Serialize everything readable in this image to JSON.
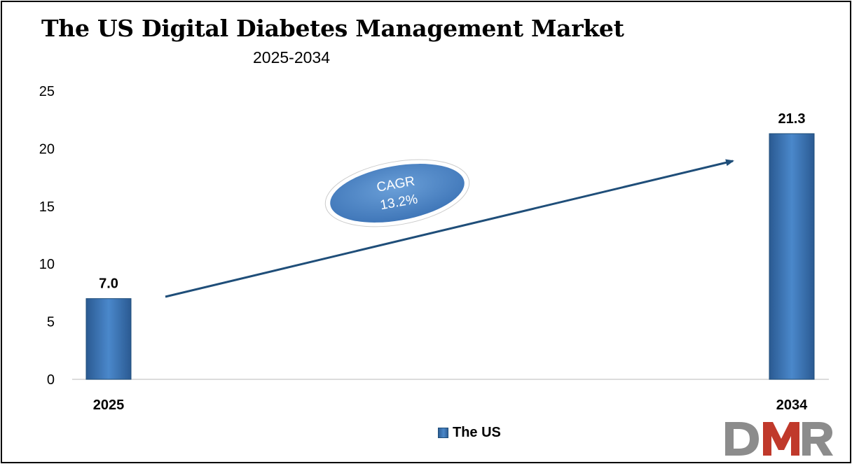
{
  "chart_data": {
    "type": "bar",
    "title": "The US Digital Diabetes Management Market",
    "subtitle": "2025-2034",
    "categories": [
      "2025",
      "2034"
    ],
    "series": [
      {
        "name": "The US",
        "values": [
          7.0,
          21.3
        ],
        "labels": [
          "7.0",
          "21.3"
        ]
      }
    ],
    "ylim": [
      0,
      25
    ],
    "yticks": [
      0,
      5,
      10,
      15,
      20,
      25
    ],
    "grid": false,
    "legend_position": "bottom",
    "annotation": {
      "line1": "CAGR",
      "line2": "13.2%"
    }
  },
  "colors": {
    "bar": "#3b78bf",
    "bar_dark": "#1f4e79",
    "arrow": "#1f4e79",
    "ellipse_fill": "#4f86c6",
    "logo_grey": "#8c8c8c",
    "logo_red": "#c0392b"
  },
  "logo": {
    "text": "DMR"
  }
}
